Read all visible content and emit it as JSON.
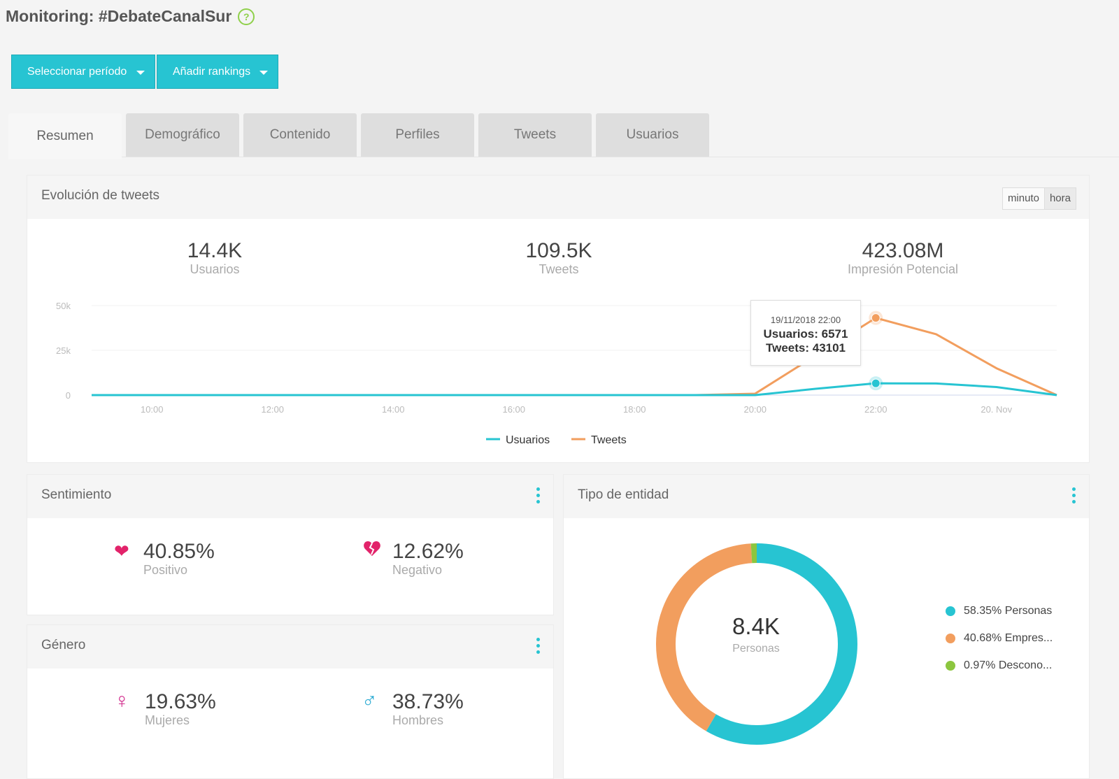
{
  "header": {
    "title": "Monitoring: #DebateCanalSur",
    "help_glyph": "?"
  },
  "toolbar": {
    "period_label": "Seleccionar período",
    "rankings_label": "Añadir rankings"
  },
  "tabs": [
    {
      "label": "Resumen",
      "active": true
    },
    {
      "label": "Demográfico"
    },
    {
      "label": "Contenido"
    },
    {
      "label": "Perfiles"
    },
    {
      "label": "Tweets"
    },
    {
      "label": "Usuarios"
    }
  ],
  "evolution": {
    "title": "Evolución de tweets",
    "toggle": {
      "minute": "minuto",
      "hour": "hora",
      "selected": "hora"
    },
    "metrics": [
      {
        "value": "14.4K",
        "label": "Usuarios"
      },
      {
        "value": "109.5K",
        "label": "Tweets"
      },
      {
        "value": "423.08M",
        "label": "Impresión Potencial"
      }
    ],
    "tooltip": {
      "date": "19/11/2018 22:00",
      "users": "Usuarios: 6571",
      "tweets": "Tweets: 43101"
    }
  },
  "chart_data": {
    "type": "line",
    "x": [
      "09:00",
      "10:00",
      "11:00",
      "12:00",
      "13:00",
      "14:00",
      "15:00",
      "16:00",
      "17:00",
      "18:00",
      "19:00",
      "20:00",
      "21:00",
      "22:00",
      "23:00",
      "20. Nov",
      "01:00"
    ],
    "x_tick_labels": [
      "10:00",
      "12:00",
      "14:00",
      "16:00",
      "18:00",
      "20:00",
      "22:00",
      "20. Nov"
    ],
    "y_tick_labels": [
      "0",
      "25k",
      "50k"
    ],
    "ylim": [
      0,
      50000
    ],
    "series": [
      {
        "name": "Usuarios",
        "color": "#27c4d2",
        "values": [
          0,
          0,
          0,
          0,
          0,
          0,
          0,
          0,
          0,
          0,
          0,
          0,
          3500,
          6571,
          6500,
          4500,
          0
        ]
      },
      {
        "name": "Tweets",
        "color": "#f29e5e",
        "values": [
          0,
          0,
          0,
          0,
          0,
          0,
          0,
          0,
          0,
          0,
          0,
          800,
          22000,
          43101,
          34000,
          15000,
          0
        ]
      }
    ],
    "legend_position": "bottom",
    "grid": true
  },
  "sentiment": {
    "title": "Sentimiento",
    "positive": {
      "value": "40.85%",
      "label": "Positivo",
      "icon": "heart-icon",
      "color": "#e2236a"
    },
    "negative": {
      "value": "12.62%",
      "label": "Negativo",
      "icon": "broken-heart-icon",
      "color": "#e2236a"
    }
  },
  "gender": {
    "title": "Género",
    "female": {
      "value": "19.63%",
      "label": "Mujeres",
      "icon": "female-symbol-icon",
      "color": "#d12a8c"
    },
    "male": {
      "value": "38.73%",
      "label": "Hombres",
      "icon": "male-symbol-icon",
      "color": "#27a9d2"
    }
  },
  "entity": {
    "title": "Tipo de entidad",
    "center_value": "8.4K",
    "center_label": "Personas",
    "slices": [
      {
        "label": "58.35% Personas",
        "percent": 58.35,
        "color": "#27c4d2"
      },
      {
        "label": "40.68% Empres...",
        "percent": 40.68,
        "color": "#f29e5e"
      },
      {
        "label": "0.97% Descono...",
        "percent": 0.97,
        "color": "#8cc63f"
      }
    ]
  }
}
